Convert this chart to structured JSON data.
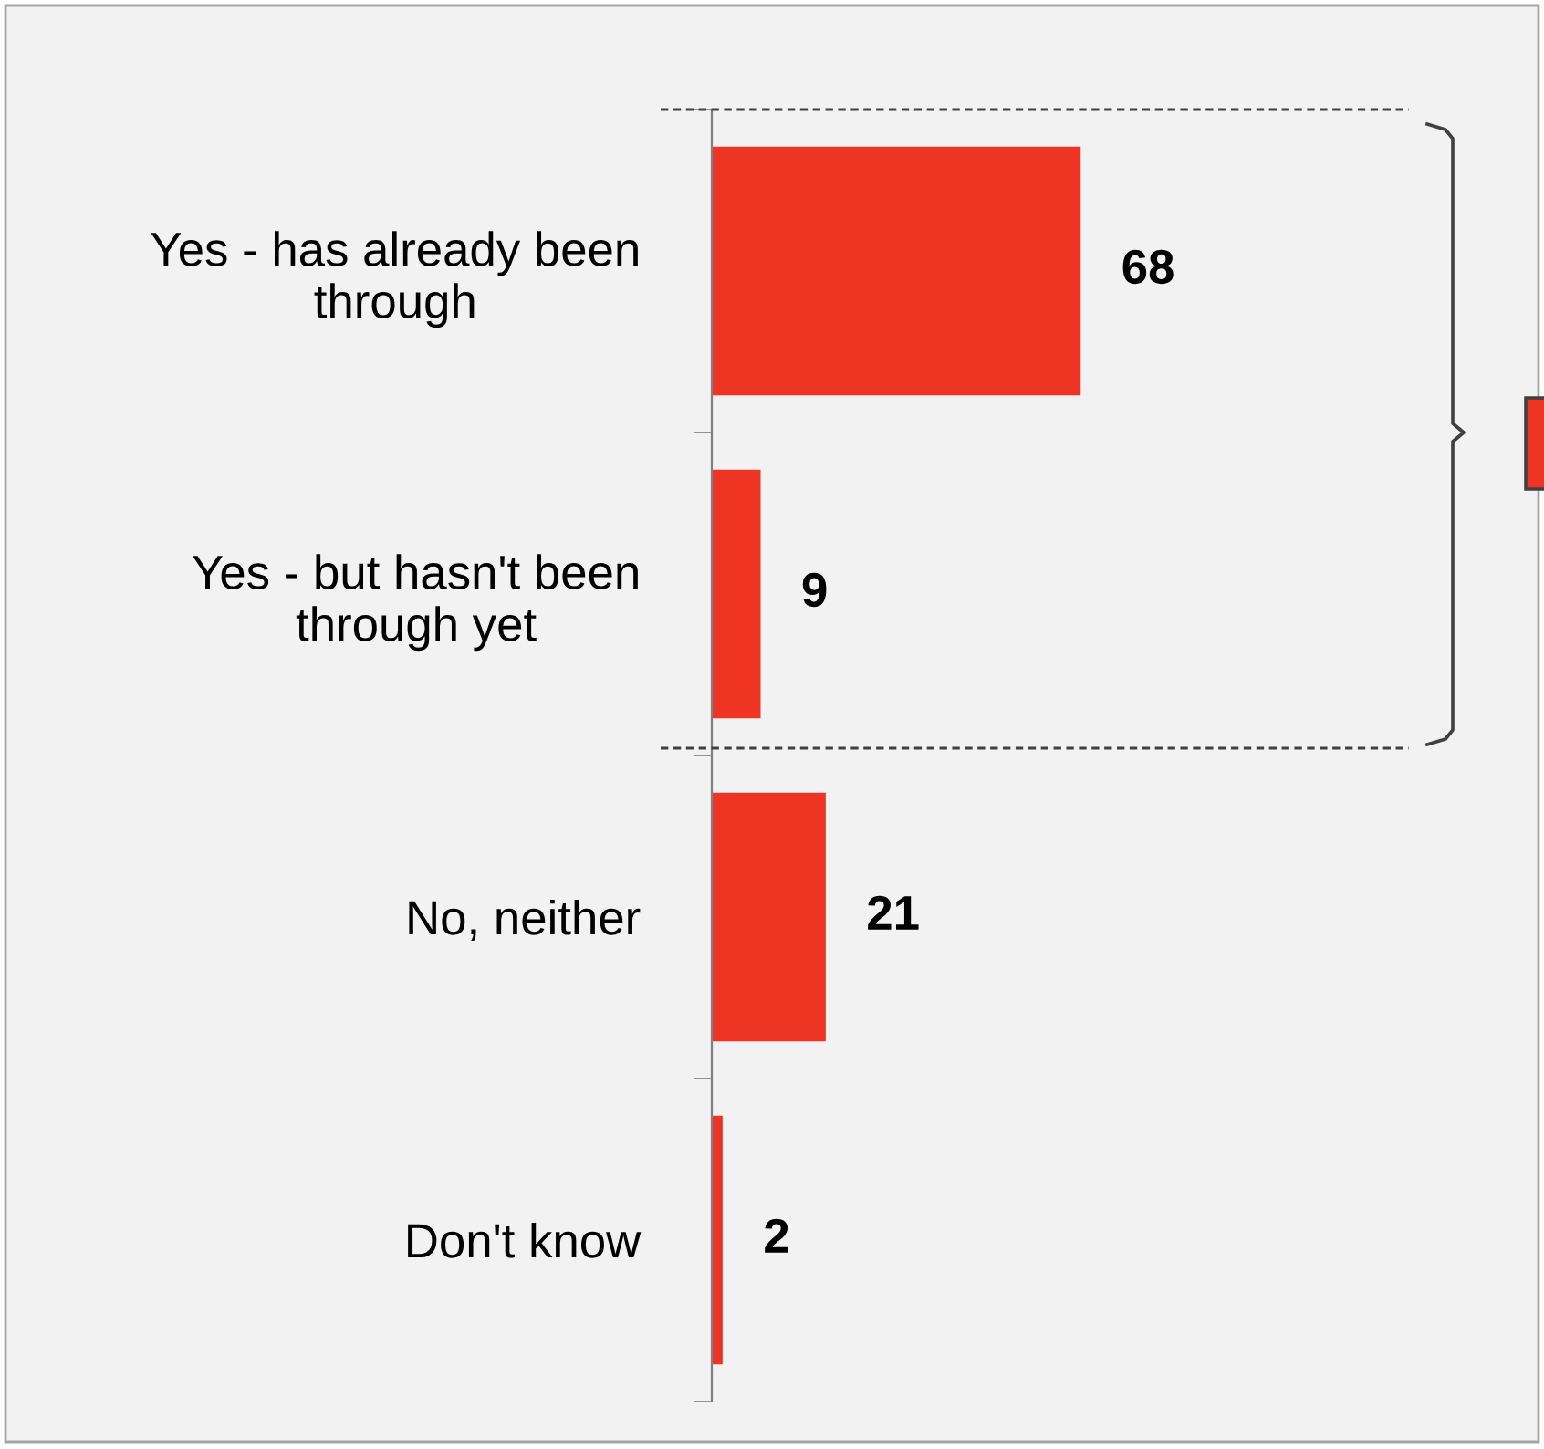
{
  "chart_data": {
    "type": "bar",
    "orientation": "horizontal",
    "categories": [
      "Yes - has already been\nthrough",
      "Yes - but hasn't been\nthrough yet",
      "No, neither",
      "Don't know"
    ],
    "values": [
      68,
      9,
      21,
      2
    ],
    "color": "#ee3524",
    "data_labels": true,
    "grid": false,
    "legend": false
  }
}
